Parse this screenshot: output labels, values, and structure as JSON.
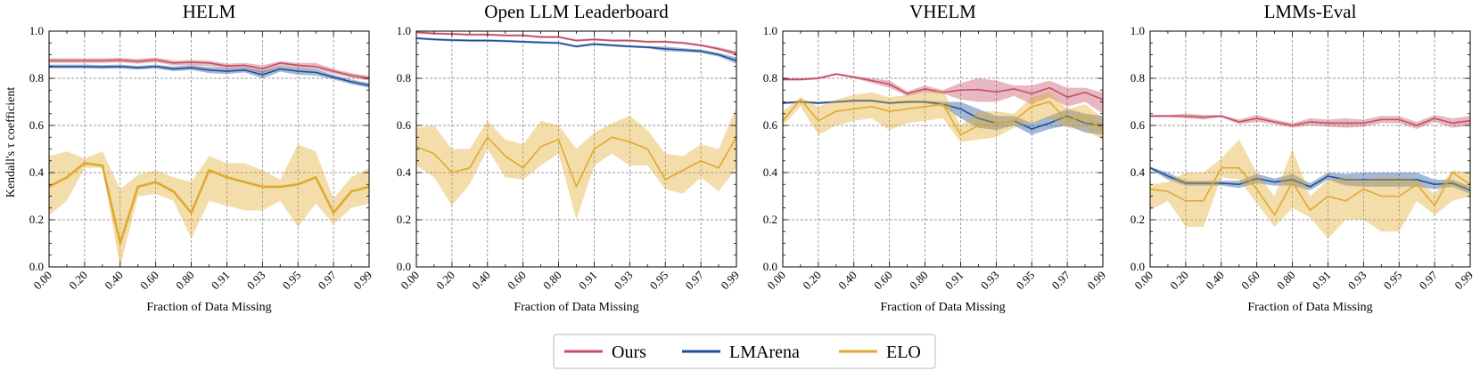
{
  "chart_data": {
    "type": "line",
    "ylabel": "Kendall's τ coefficient",
    "xlabel": "Fraction of Data Missing",
    "xticks": [
      "0.00",
      "0.20",
      "0.40",
      "0.60",
      "0.80",
      "0.91",
      "0.93",
      "0.95",
      "0.97",
      "0.99"
    ],
    "yticks": [
      "0.0",
      "0.2",
      "0.4",
      "0.6",
      "0.8",
      "1.0"
    ],
    "ylim": [
      0,
      1
    ],
    "legend": [
      {
        "name": "Ours",
        "color": "#c44e63"
      },
      {
        "name": "LMArena",
        "color": "#1f4e96"
      },
      {
        "name": "ELO",
        "color": "#e0a92e"
      }
    ],
    "panels": [
      {
        "title": "HELM",
        "series": [
          {
            "name": "Ours",
            "color": "#c44e63",
            "band": 0.012,
            "values": [
              0.875,
              0.875,
              0.875,
              0.875,
              0.877,
              0.872,
              0.878,
              0.865,
              0.868,
              0.865,
              0.852,
              0.855,
              0.84,
              0.865,
              0.855,
              0.85,
              0.83,
              0.812,
              0.8
            ],
            "lower": [
              0.865,
              0.865,
              0.865,
              0.865,
              0.867,
              0.862,
              0.868,
              0.855,
              0.855,
              0.852,
              0.84,
              0.842,
              0.822,
              0.852,
              0.845,
              0.838,
              0.82,
              0.802,
              0.79
            ],
            "upper": [
              0.885,
              0.885,
              0.885,
              0.885,
              0.887,
              0.882,
              0.888,
              0.875,
              0.878,
              0.875,
              0.862,
              0.865,
              0.855,
              0.872,
              0.865,
              0.865,
              0.84,
              0.822,
              0.81
            ]
          },
          {
            "name": "LMArena",
            "color": "#1f4e96",
            "values": [
              0.85,
              0.85,
              0.85,
              0.848,
              0.85,
              0.845,
              0.85,
              0.84,
              0.845,
              0.835,
              0.83,
              0.835,
              0.815,
              0.84,
              0.83,
              0.825,
              0.805,
              0.785,
              0.77
            ],
            "lower": [
              0.842,
              0.842,
              0.842,
              0.84,
              0.842,
              0.837,
              0.842,
              0.83,
              0.835,
              0.822,
              0.818,
              0.825,
              0.8,
              0.828,
              0.815,
              0.812,
              0.795,
              0.775,
              0.76
            ],
            "upper": [
              0.858,
              0.858,
              0.858,
              0.856,
              0.858,
              0.853,
              0.858,
              0.85,
              0.855,
              0.848,
              0.842,
              0.845,
              0.83,
              0.852,
              0.845,
              0.838,
              0.815,
              0.795,
              0.78
            ]
          },
          {
            "name": "ELO",
            "color": "#e0a92e",
            "thick": true,
            "values": [
              0.34,
              0.38,
              0.44,
              0.43,
              0.1,
              0.34,
              0.36,
              0.32,
              0.23,
              0.41,
              0.38,
              0.36,
              0.34,
              0.34,
              0.35,
              0.38,
              0.23,
              0.32,
              0.34
            ],
            "lower": [
              0.22,
              0.28,
              0.42,
              0.42,
              0.0,
              0.3,
              0.31,
              0.28,
              0.12,
              0.28,
              0.26,
              0.24,
              0.24,
              0.28,
              0.17,
              0.27,
              0.18,
              0.25,
              0.27
            ],
            "upper": [
              0.47,
              0.49,
              0.46,
              0.49,
              0.33,
              0.39,
              0.41,
              0.38,
              0.36,
              0.47,
              0.44,
              0.44,
              0.41,
              0.37,
              0.52,
              0.49,
              0.29,
              0.38,
              0.42
            ]
          }
        ]
      },
      {
        "title": "Open LLM Leaderboard",
        "series": [
          {
            "name": "Ours",
            "color": "#c44e63",
            "values": [
              0.995,
              0.99,
              0.988,
              0.985,
              0.985,
              0.982,
              0.982,
              0.975,
              0.975,
              0.96,
              0.965,
              0.96,
              0.96,
              0.955,
              0.955,
              0.95,
              0.94,
              0.925,
              0.905
            ],
            "lower": [
              0.99,
              0.985,
              0.983,
              0.98,
              0.98,
              0.977,
              0.977,
              0.97,
              0.97,
              0.955,
              0.96,
              0.955,
              0.955,
              0.95,
              0.95,
              0.945,
              0.935,
              0.918,
              0.895
            ],
            "upper": [
              1.0,
              0.995,
              0.993,
              0.99,
              0.99,
              0.987,
              0.987,
              0.98,
              0.98,
              0.965,
              0.97,
              0.965,
              0.965,
              0.96,
              0.96,
              0.955,
              0.945,
              0.932,
              0.915
            ]
          },
          {
            "name": "LMArena",
            "color": "#1f4e96",
            "values": [
              0.97,
              0.965,
              0.962,
              0.96,
              0.96,
              0.958,
              0.955,
              0.952,
              0.95,
              0.935,
              0.945,
              0.94,
              0.935,
              0.932,
              0.925,
              0.92,
              0.915,
              0.9,
              0.875
            ],
            "lower": [
              0.965,
              0.96,
              0.957,
              0.955,
              0.955,
              0.953,
              0.95,
              0.947,
              0.945,
              0.93,
              0.94,
              0.935,
              0.93,
              0.927,
              0.915,
              0.912,
              0.908,
              0.892,
              0.862
            ],
            "upper": [
              0.975,
              0.97,
              0.967,
              0.965,
              0.965,
              0.963,
              0.96,
              0.957,
              0.955,
              0.94,
              0.95,
              0.945,
              0.94,
              0.937,
              0.935,
              0.928,
              0.922,
              0.908,
              0.888
            ]
          },
          {
            "name": "ELO",
            "color": "#e0a92e",
            "values": [
              0.51,
              0.48,
              0.4,
              0.42,
              0.55,
              0.47,
              0.42,
              0.51,
              0.54,
              0.34,
              0.5,
              0.55,
              0.53,
              0.5,
              0.37,
              0.41,
              0.45,
              0.42,
              0.55
            ],
            "lower": [
              0.43,
              0.38,
              0.26,
              0.35,
              0.5,
              0.38,
              0.37,
              0.43,
              0.48,
              0.2,
              0.43,
              0.48,
              0.43,
              0.43,
              0.33,
              0.31,
              0.38,
              0.32,
              0.42
            ],
            "upper": [
              0.59,
              0.6,
              0.5,
              0.5,
              0.62,
              0.54,
              0.52,
              0.62,
              0.6,
              0.5,
              0.57,
              0.61,
              0.64,
              0.58,
              0.48,
              0.47,
              0.52,
              0.5,
              0.68
            ]
          }
        ]
      },
      {
        "title": "VHELM",
        "series": [
          {
            "name": "Ours",
            "color": "#c44e63",
            "values": [
              0.795,
              0.795,
              0.8,
              0.818,
              0.805,
              0.79,
              0.775,
              0.735,
              0.755,
              0.74,
              0.75,
              0.752,
              0.742,
              0.755,
              0.735,
              0.76,
              0.72,
              0.74,
              0.71
            ],
            "lower": [
              0.79,
              0.79,
              0.795,
              0.813,
              0.8,
              0.78,
              0.76,
              0.725,
              0.74,
              0.735,
              0.71,
              0.7,
              0.7,
              0.725,
              0.69,
              0.72,
              0.68,
              0.7,
              0.65
            ],
            "upper": [
              0.8,
              0.8,
              0.805,
              0.823,
              0.81,
              0.8,
              0.79,
              0.745,
              0.77,
              0.75,
              0.78,
              0.8,
              0.79,
              0.77,
              0.77,
              0.79,
              0.76,
              0.76,
              0.74
            ]
          },
          {
            "name": "LMArena",
            "color": "#1f4e96",
            "values": [
              0.695,
              0.7,
              0.695,
              0.7,
              0.705,
              0.705,
              0.695,
              0.7,
              0.7,
              0.69,
              0.67,
              0.63,
              0.61,
              0.62,
              0.585,
              0.61,
              0.64,
              0.61,
              0.6
            ],
            "lower": [
              0.69,
              0.695,
              0.69,
              0.695,
              0.7,
              0.7,
              0.69,
              0.695,
              0.695,
              0.68,
              0.63,
              0.59,
              0.58,
              0.6,
              0.56,
              0.585,
              0.6,
              0.57,
              0.56
            ],
            "upper": [
              0.7,
              0.705,
              0.7,
              0.705,
              0.71,
              0.71,
              0.7,
              0.705,
              0.705,
              0.7,
              0.7,
              0.67,
              0.64,
              0.64,
              0.61,
              0.64,
              0.67,
              0.65,
              0.64
            ]
          },
          {
            "name": "ELO",
            "color": "#e0a92e",
            "values": [
              0.62,
              0.71,
              0.62,
              0.66,
              0.67,
              0.68,
              0.66,
              0.67,
              0.68,
              0.69,
              0.56,
              0.6,
              0.61,
              0.62,
              0.68,
              0.7,
              0.62,
              0.64,
              0.58
            ],
            "lower": [
              0.6,
              0.68,
              0.56,
              0.6,
              0.62,
              0.63,
              0.58,
              0.61,
              0.62,
              0.63,
              0.53,
              0.54,
              0.55,
              0.59,
              0.61,
              0.63,
              0.59,
              0.58,
              0.54
            ],
            "upper": [
              0.66,
              0.72,
              0.68,
              0.71,
              0.73,
              0.74,
              0.72,
              0.73,
              0.74,
              0.75,
              0.6,
              0.66,
              0.66,
              0.65,
              0.72,
              0.74,
              0.67,
              0.69,
              0.63
            ]
          }
        ]
      },
      {
        "title": "LMMs-Eval",
        "series": [
          {
            "name": "Ours",
            "color": "#c44e63",
            "values": [
              0.64,
              0.64,
              0.64,
              0.635,
              0.64,
              0.615,
              0.63,
              0.615,
              0.6,
              0.615,
              0.61,
              0.61,
              0.61,
              0.625,
              0.625,
              0.6,
              0.63,
              0.61,
              0.62
            ],
            "lower": [
              0.635,
              0.635,
              0.63,
              0.625,
              0.635,
              0.605,
              0.615,
              0.605,
              0.59,
              0.6,
              0.595,
              0.59,
              0.595,
              0.61,
              0.61,
              0.585,
              0.615,
              0.59,
              0.6
            ],
            "upper": [
              0.645,
              0.645,
              0.65,
              0.645,
              0.645,
              0.625,
              0.645,
              0.625,
              0.61,
              0.63,
              0.625,
              0.63,
              0.625,
              0.64,
              0.64,
              0.615,
              0.645,
              0.63,
              0.64
            ]
          },
          {
            "name": "LMArena",
            "color": "#1f4e96",
            "values": [
              0.42,
              0.385,
              0.355,
              0.355,
              0.355,
              0.35,
              0.375,
              0.36,
              0.37,
              0.34,
              0.385,
              0.37,
              0.37,
              0.37,
              0.37,
              0.37,
              0.35,
              0.355,
              0.325
            ],
            "lower": [
              0.415,
              0.37,
              0.345,
              0.345,
              0.345,
              0.335,
              0.355,
              0.345,
              0.345,
              0.325,
              0.37,
              0.345,
              0.34,
              0.34,
              0.34,
              0.34,
              0.33,
              0.34,
              0.31
            ],
            "upper": [
              0.425,
              0.4,
              0.365,
              0.365,
              0.365,
              0.365,
              0.395,
              0.375,
              0.395,
              0.355,
              0.4,
              0.395,
              0.4,
              0.4,
              0.4,
              0.4,
              0.37,
              0.37,
              0.34
            ]
          },
          {
            "name": "ELO",
            "color": "#e0a92e",
            "values": [
              0.33,
              0.32,
              0.28,
              0.28,
              0.42,
              0.42,
              0.33,
              0.22,
              0.36,
              0.24,
              0.3,
              0.28,
              0.33,
              0.3,
              0.3,
              0.35,
              0.26,
              0.4,
              0.35
            ],
            "lower": [
              0.24,
              0.28,
              0.17,
              0.17,
              0.38,
              0.37,
              0.27,
              0.17,
              0.25,
              0.21,
              0.12,
              0.2,
              0.2,
              0.15,
              0.15,
              0.28,
              0.22,
              0.28,
              0.3
            ],
            "upper": [
              0.35,
              0.36,
              0.4,
              0.4,
              0.46,
              0.54,
              0.4,
              0.3,
              0.5,
              0.3,
              0.37,
              0.38,
              0.37,
              0.38,
              0.38,
              0.37,
              0.31,
              0.41,
              0.4
            ]
          }
        ]
      }
    ]
  }
}
